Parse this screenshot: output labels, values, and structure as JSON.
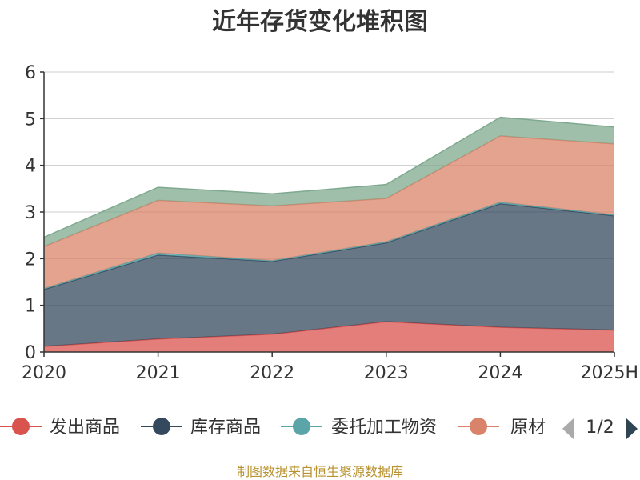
{
  "chart_data": {
    "type": "area",
    "stacked": true,
    "title": "近年存货变化堆积图",
    "ylabel": "",
    "categories": [
      "2020",
      "2021",
      "2022",
      "2023",
      "2024",
      "2025H"
    ],
    "ylim": [
      0,
      6
    ],
    "yticks": [
      "0",
      "1",
      "2",
      "3",
      "4",
      "5",
      "6"
    ],
    "grid": true,
    "series": [
      {
        "name": "发出商品",
        "color": "#d9534f",
        "values": [
          0.12,
          0.28,
          0.38,
          0.65,
          0.53,
          0.47
        ]
      },
      {
        "name": "库存商品",
        "color": "#34495e",
        "values": [
          1.22,
          1.8,
          1.56,
          1.69,
          2.65,
          2.45
        ]
      },
      {
        "name": "委托加工物资",
        "color": "#5ba4a8",
        "values": [
          0.02,
          0.04,
          0.02,
          0.02,
          0.03,
          0.02
        ]
      },
      {
        "name": "原材料",
        "color": "#d9846a",
        "values": [
          0.9,
          1.13,
          1.17,
          0.93,
          1.42,
          1.52
        ]
      },
      {
        "name": "",
        "color": "#7fa98f",
        "values": [
          0.2,
          0.28,
          0.26,
          0.3,
          0.4,
          0.36
        ]
      }
    ],
    "legend": {
      "position": "bottom",
      "visible_labels": [
        "发出商品",
        "库存商品",
        "委托加工物资",
        "原材"
      ],
      "page": "1/2",
      "prev_icon": "triangle-left-icon",
      "next_icon": "triangle-right-icon"
    },
    "footer": "制图数据来自恒生聚源数据库"
  }
}
